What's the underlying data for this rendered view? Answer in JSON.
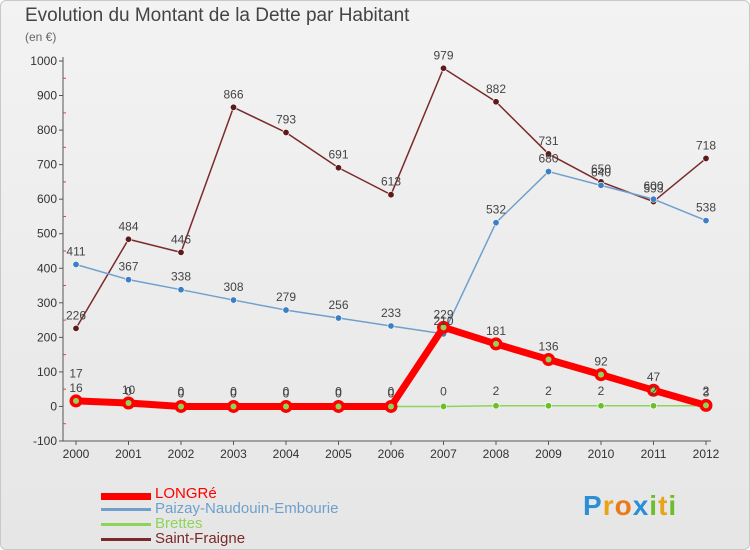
{
  "chart_data": {
    "type": "line",
    "title": "Evolution du Montant de la Dette par Habitant",
    "subtitle": "(en €)",
    "xlabel": "",
    "ylabel": "",
    "x": [
      "2000",
      "2001",
      "2002",
      "2003",
      "2004",
      "2005",
      "2006",
      "2007",
      "2008",
      "2009",
      "2010",
      "2011",
      "2012"
    ],
    "ylim": [
      -100,
      1000
    ],
    "yticks": [
      "-100",
      "0",
      "100",
      "200",
      "300",
      "400",
      "500",
      "600",
      "700",
      "800",
      "900",
      "1000"
    ],
    "grid": false,
    "series": [
      {
        "name": "LONGRé",
        "color": "#ff0000",
        "values": [
          16,
          10,
          0,
          0,
          0,
          0,
          0,
          229,
          181,
          136,
          92,
          47,
          3
        ],
        "labels": [
          "16",
          "10",
          "0",
          "0",
          "0",
          "0",
          "0",
          "229",
          "181",
          "136",
          "92",
          "47",
          "3"
        ]
      },
      {
        "name": "Paizay-Naudouin-Embourie",
        "color": "#6fa0cc",
        "values": [
          411,
          367,
          338,
          308,
          279,
          256,
          233,
          210,
          532,
          680,
          640,
          600,
          538
        ],
        "labels": [
          "411",
          "367",
          "338",
          "308",
          "279",
          "256",
          "233",
          "210",
          "532",
          "680",
          "640",
          "600",
          "538"
        ]
      },
      {
        "name": "Brettes",
        "color": "#8fd45a",
        "values": [
          17,
          0,
          0,
          0,
          0,
          0,
          0,
          0,
          2,
          2,
          2,
          2,
          2
        ],
        "labels": [
          "17",
          "0",
          "0",
          "0",
          "0",
          "0",
          "0",
          "0",
          "2",
          "2",
          "2",
          "2",
          "2"
        ]
      },
      {
        "name": "Saint-Fraigne",
        "color": "#7a2a2a",
        "values": [
          226,
          484,
          446,
          866,
          793,
          691,
          613,
          979,
          882,
          731,
          650,
          593,
          718
        ],
        "labels": [
          "226",
          "484",
          "446",
          "866",
          "793",
          "691",
          "613",
          "979",
          "882",
          "731",
          "650",
          "593",
          "718"
        ]
      }
    ]
  },
  "logo": {
    "letters": [
      "P",
      "r",
      "o",
      "x",
      "i",
      "t",
      "i"
    ],
    "colors": [
      "#2a8fd6",
      "#e8a31a",
      "#e87b1a",
      "#2a8fd6",
      "#6cbf2a",
      "#e8a31a",
      "#6cbf2a"
    ]
  }
}
